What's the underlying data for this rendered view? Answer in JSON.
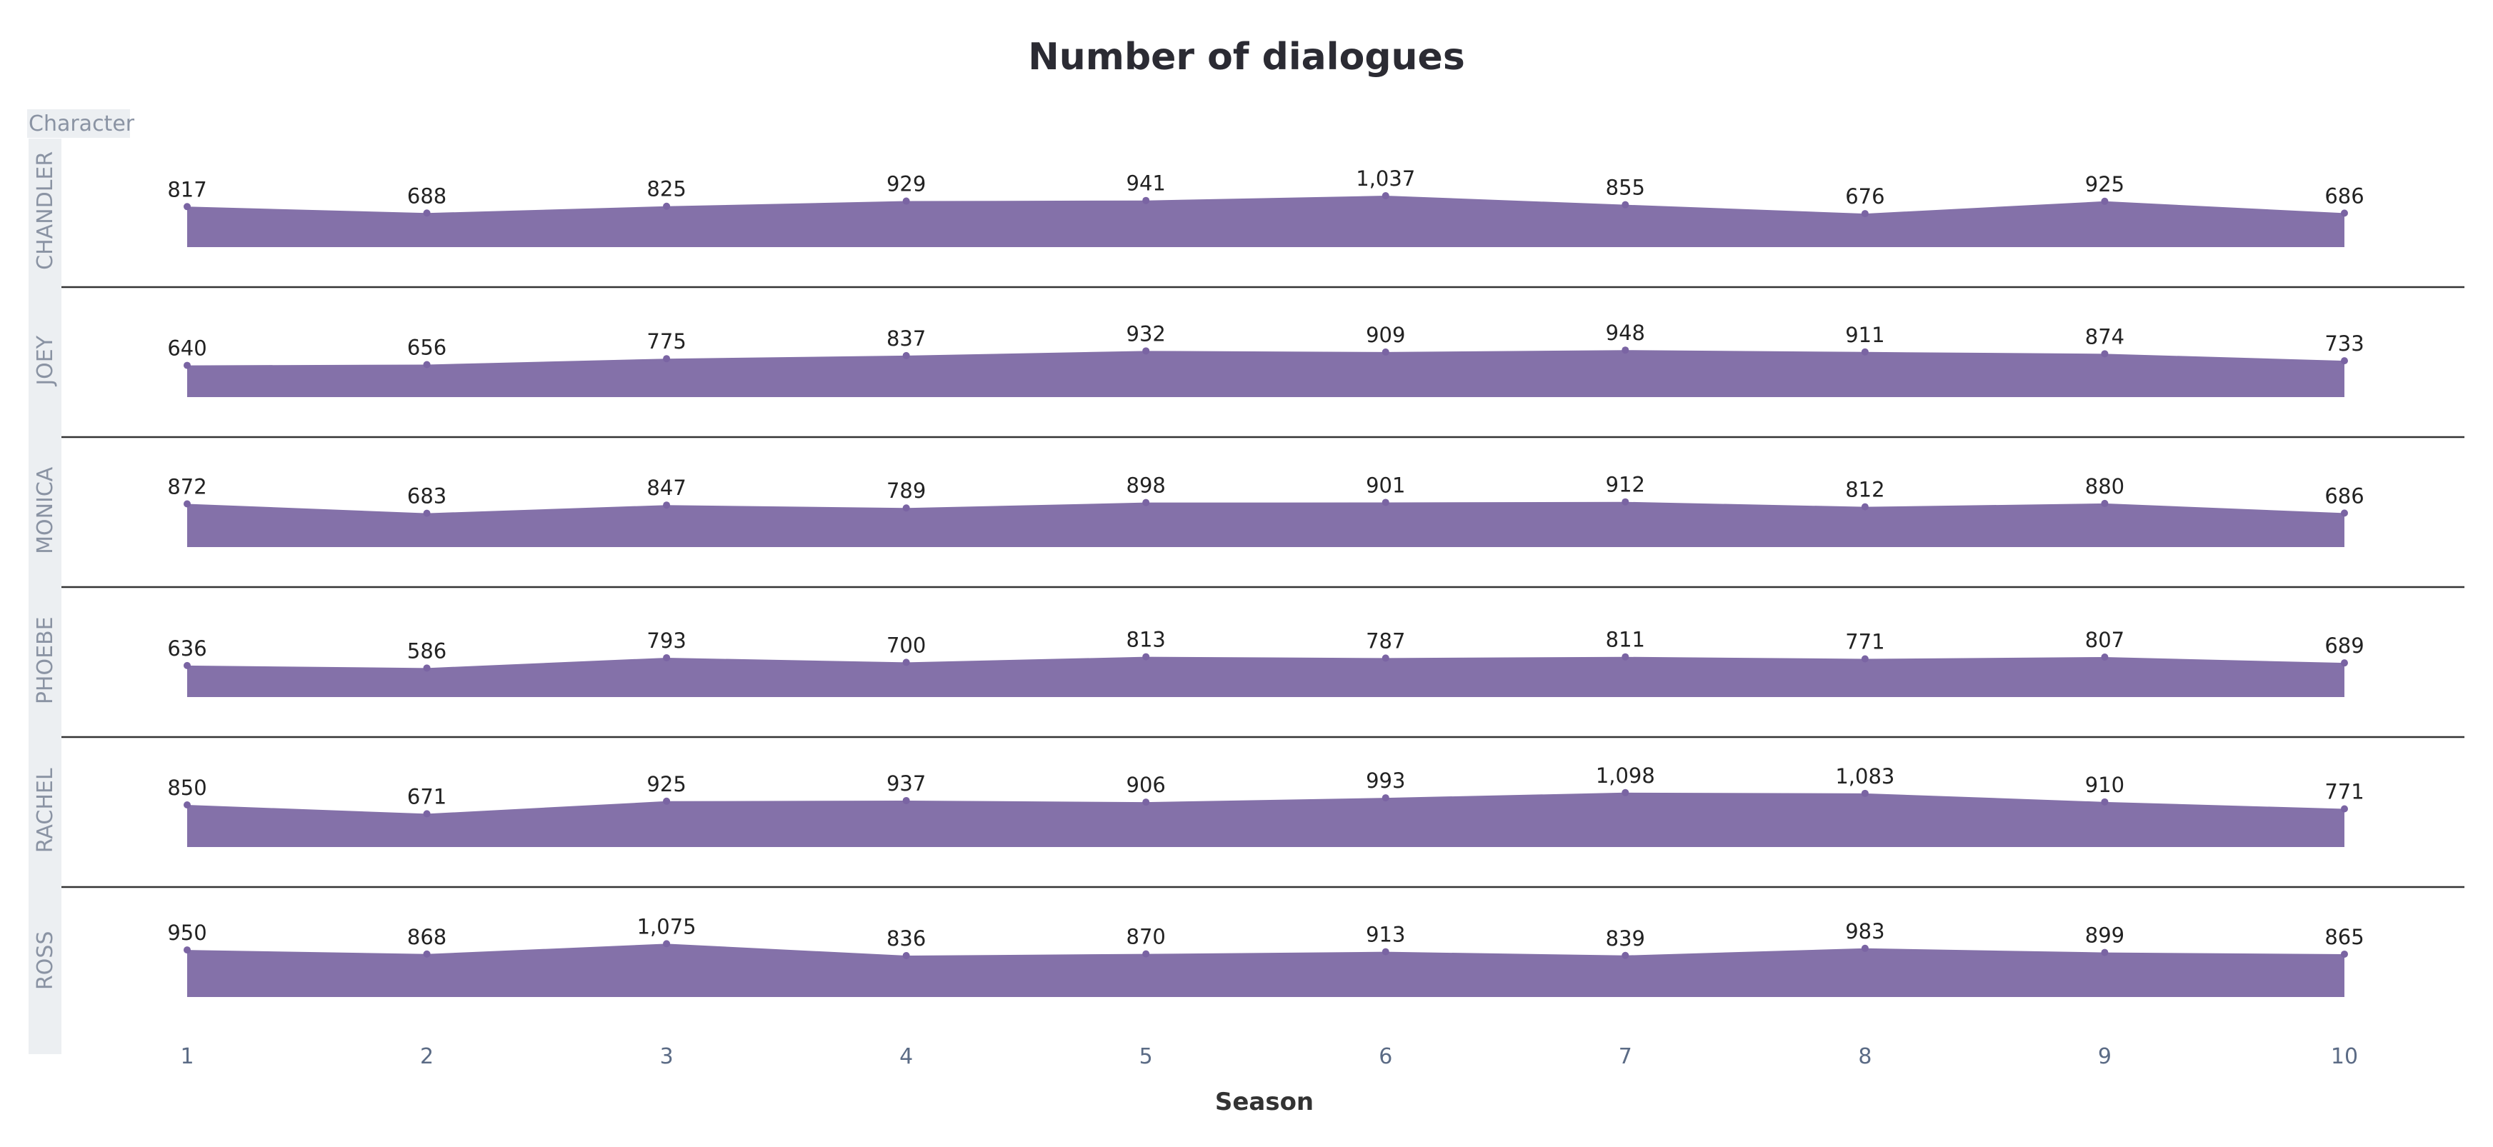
{
  "chart_data": {
    "type": "area",
    "title": "Number of dialogues",
    "xlabel": "Season",
    "facet_label": "Character",
    "categories": [
      "1",
      "2",
      "3",
      "4",
      "5",
      "6",
      "7",
      "8",
      "9",
      "10"
    ],
    "series": [
      {
        "name": "CHANDLER",
        "values": [
          817,
          688,
          825,
          929,
          941,
          1037,
          855,
          676,
          925,
          686
        ],
        "labels": [
          "817",
          "688",
          "825",
          "929",
          "941",
          "1,037",
          "855",
          "676",
          "925",
          "686"
        ]
      },
      {
        "name": "JOEY",
        "values": [
          640,
          656,
          775,
          837,
          932,
          909,
          948,
          911,
          874,
          733
        ],
        "labels": [
          "640",
          "656",
          "775",
          "837",
          "932",
          "909",
          "948",
          "911",
          "874",
          "733"
        ]
      },
      {
        "name": "MONICA",
        "values": [
          872,
          683,
          847,
          789,
          898,
          901,
          912,
          812,
          880,
          686
        ],
        "labels": [
          "872",
          "683",
          "847",
          "789",
          "898",
          "901",
          "912",
          "812",
          "880",
          "686"
        ]
      },
      {
        "name": "PHOEBE",
        "values": [
          636,
          586,
          793,
          700,
          813,
          787,
          811,
          771,
          807,
          689
        ],
        "labels": [
          "636",
          "586",
          "793",
          "700",
          "813",
          "787",
          "811",
          "771",
          "807",
          "689"
        ]
      },
      {
        "name": "RACHEL",
        "values": [
          850,
          671,
          925,
          937,
          906,
          993,
          1098,
          1083,
          910,
          771
        ],
        "labels": [
          "850",
          "671",
          "925",
          "937",
          "906",
          "993",
          "1,098",
          "1,083",
          "910",
          "771"
        ]
      },
      {
        "name": "ROSS",
        "values": [
          950,
          868,
          1075,
          836,
          870,
          913,
          839,
          983,
          899,
          865
        ],
        "labels": [
          "950",
          "868",
          "1,075",
          "836",
          "870",
          "913",
          "839",
          "983",
          "899",
          "865"
        ]
      }
    ],
    "colors": {
      "area": "#8471a9",
      "point": "#7a64a3",
      "divider": "#333333",
      "facet_bg": "#eceff2"
    }
  }
}
